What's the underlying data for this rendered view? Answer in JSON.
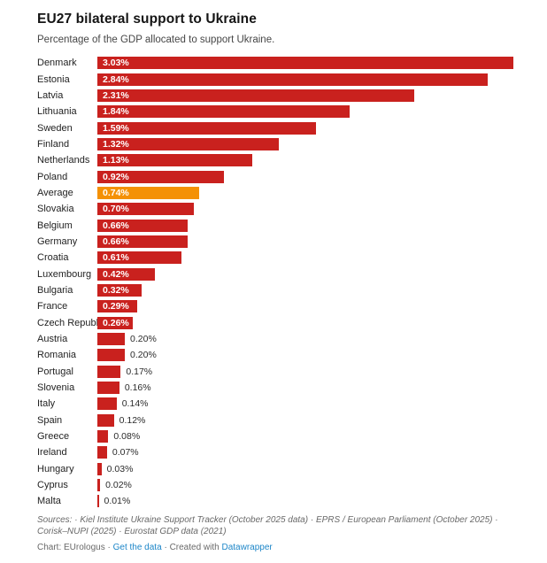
{
  "header": {
    "title": "EU27 bilateral support to Ukraine",
    "subtitle": "Percentage of the GDP allocated to support Ukraine."
  },
  "chart_data": {
    "type": "bar",
    "orientation": "horizontal",
    "title": "EU27 bilateral support to Ukraine",
    "subtitle": "Percentage of the GDP allocated to support Ukraine.",
    "unit": "%",
    "xlim": [
      0,
      3.03
    ],
    "grid": false,
    "legend": "none",
    "categories": [
      "Denmark",
      "Estonia",
      "Latvia",
      "Lithuania",
      "Sweden",
      "Finland",
      "Netherlands",
      "Poland",
      "Average",
      "Slovakia",
      "Belgium",
      "Germany",
      "Croatia",
      "Luxembourg",
      "Bulgaria",
      "France",
      "Czech Republic",
      "Austria",
      "Romania",
      "Portugal",
      "Slovenia",
      "Italy",
      "Spain",
      "Greece",
      "Ireland",
      "Hungary",
      "Cyprus",
      "Malta"
    ],
    "values": [
      3.03,
      2.84,
      2.31,
      1.84,
      1.59,
      1.32,
      1.13,
      0.92,
      0.74,
      0.7,
      0.66,
      0.66,
      0.61,
      0.42,
      0.32,
      0.29,
      0.26,
      0.2,
      0.2,
      0.17,
      0.16,
      0.14,
      0.12,
      0.08,
      0.07,
      0.03,
      0.02,
      0.01
    ],
    "value_labels": [
      "3.03%",
      "2.84%",
      "2.31%",
      "1.84%",
      "1.59%",
      "1.32%",
      "1.13%",
      "0.92%",
      "0.74%",
      "0.70%",
      "0.66%",
      "0.66%",
      "0.61%",
      "0.42%",
      "0.32%",
      "0.29%",
      "0.26%",
      "0.20%",
      "0.20%",
      "0.17%",
      "0.16%",
      "0.14%",
      "0.12%",
      "0.08%",
      "0.07%",
      "0.03%",
      "0.02%",
      "0.01%"
    ],
    "highlight_index": 8,
    "bar_color": "#c9211e",
    "highlight_color": "#f49105",
    "inside_label_min_value": 0.26
  },
  "footer": {
    "sources_label": "Sources:",
    "sources_text": "· Kiel Institute Ukraine Support Tracker (October 2025 data) · EPRS / European Parliament (October 2025) · Corisk–NUPI (2025) · Eurostat GDP data (2021)",
    "chart_credit": "Chart: EUrologus",
    "dot": "·",
    "get_data_label": "Get the data",
    "created_with": "Created with",
    "datawrapper_label": "Datawrapper"
  }
}
